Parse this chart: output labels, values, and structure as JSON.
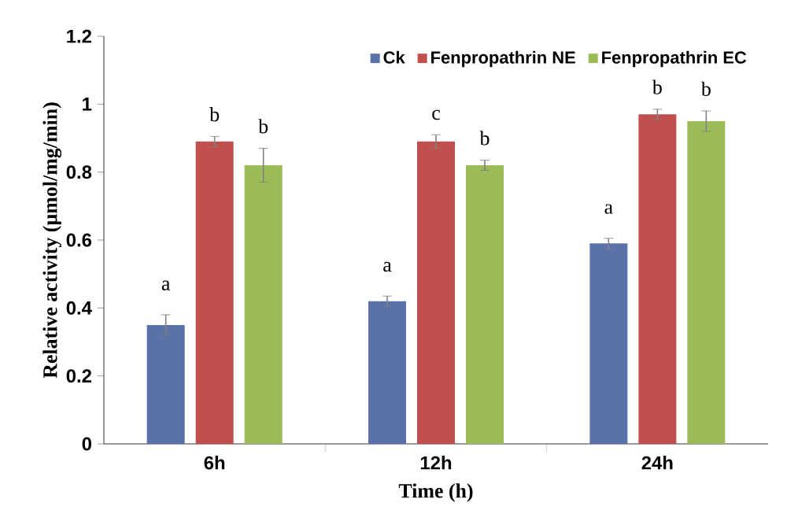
{
  "chart_data": {
    "type": "bar",
    "xlabel": "Time (h)",
    "ylabel": "Relative activity (µmol/mg/min)",
    "categories": [
      "6h",
      "12h",
      "24h"
    ],
    "series": [
      {
        "name": "Ck",
        "color": "#5b72a8",
        "values": [
          0.35,
          0.42,
          0.59
        ],
        "errors": [
          0.03,
          0.015,
          0.015
        ]
      },
      {
        "name": "Fenpropathrin NE",
        "color": "#c0504d",
        "values": [
          0.89,
          0.89,
          0.97
        ],
        "errors": [
          0.015,
          0.02,
          0.015
        ]
      },
      {
        "name": "Fenpropathrin EC",
        "color": "#9bbb59",
        "values": [
          0.82,
          0.82,
          0.95
        ],
        "errors": [
          0.05,
          0.015,
          0.03
        ]
      }
    ],
    "ylim": [
      0,
      1.2
    ],
    "yticks": [
      0,
      0.2,
      0.4,
      0.6,
      0.8,
      1,
      1.2
    ],
    "legend": "top right",
    "annotations": [
      "a",
      "a",
      "a",
      "b",
      "c",
      "b",
      "b",
      "b",
      "b"
    ]
  }
}
